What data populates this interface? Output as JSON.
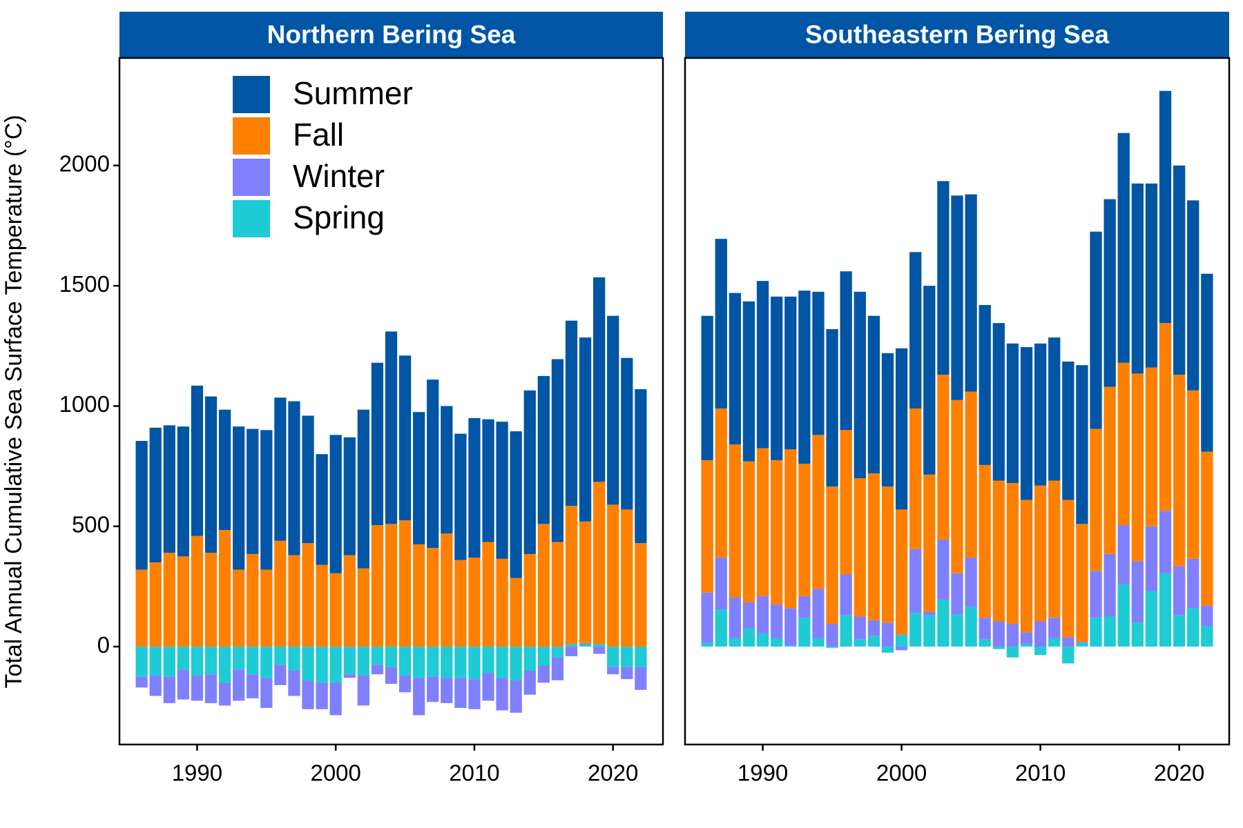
{
  "chart_data": [
    {
      "type": "bar",
      "stacked": true,
      "title": "Northern Bering Sea",
      "ylabel": "Total Annual Cumulative Sea Surface Temperature (°C)",
      "x": [
        1986,
        1987,
        1988,
        1989,
        1990,
        1991,
        1992,
        1993,
        1994,
        1995,
        1996,
        1997,
        1998,
        1999,
        2000,
        2001,
        2002,
        2003,
        2004,
        2005,
        2006,
        2007,
        2008,
        2009,
        2010,
        2011,
        2012,
        2013,
        2014,
        2015,
        2016,
        2017,
        2018,
        2019,
        2020,
        2021,
        2022
      ],
      "xlim": [
        1984.4,
        2023.6
      ],
      "xticks": [
        1990,
        2000,
        2010,
        2020
      ],
      "ylim": [
        -407,
        2447
      ],
      "yticks": [
        0,
        500,
        1000,
        1500,
        2000
      ],
      "legend": "upper left",
      "series": [
        {
          "name": "Summer",
          "color": "#0055a4",
          "values": [
            535,
            560,
            530,
            540,
            625,
            650,
            500,
            595,
            520,
            580,
            595,
            640,
            530,
            460,
            575,
            490,
            660,
            675,
            800,
            685,
            550,
            700,
            530,
            525,
            580,
            510,
            570,
            610,
            680,
            615,
            760,
            770,
            765,
            850,
            785,
            630,
            640
          ]
        },
        {
          "name": "Fall",
          "color": "#ff8000",
          "values": [
            320,
            350,
            390,
            375,
            460,
            390,
            485,
            320,
            385,
            320,
            440,
            380,
            430,
            340,
            305,
            380,
            325,
            505,
            510,
            525,
            425,
            410,
            470,
            360,
            370,
            435,
            365,
            285,
            385,
            510,
            435,
            575,
            505,
            675,
            590,
            570,
            430
          ]
        },
        {
          "name": "Winter",
          "color": "#8080ff",
          "values": [
            -45,
            -85,
            -110,
            -125,
            -105,
            -120,
            -95,
            -130,
            -100,
            -125,
            -85,
            -105,
            -120,
            -110,
            -135,
            -15,
            -125,
            -40,
            -70,
            -70,
            -155,
            -105,
            -105,
            -125,
            -125,
            -115,
            -135,
            -135,
            -100,
            -70,
            -95,
            -40,
            5,
            -30,
            -30,
            -50,
            -95
          ]
        },
        {
          "name": "Spring",
          "color": "#1fcbd4",
          "values": [
            -125,
            -120,
            -125,
            -95,
            -120,
            -115,
            -150,
            -95,
            -115,
            -130,
            -75,
            -100,
            -140,
            -150,
            -150,
            -115,
            -120,
            -75,
            -85,
            -120,
            -130,
            -125,
            -130,
            -130,
            -135,
            -110,
            -130,
            -140,
            -100,
            -80,
            -45,
            10,
            10,
            10,
            -85,
            -85,
            -85
          ]
        }
      ]
    },
    {
      "type": "bar",
      "stacked": true,
      "title": "Southeastern Bering Sea",
      "x": [
        1986,
        1987,
        1988,
        1989,
        1990,
        1991,
        1992,
        1993,
        1994,
        1995,
        1996,
        1997,
        1998,
        1999,
        2000,
        2001,
        2002,
        2003,
        2004,
        2005,
        2006,
        2007,
        2008,
        2009,
        2010,
        2011,
        2012,
        2013,
        2014,
        2015,
        2016,
        2017,
        2018,
        2019,
        2020,
        2021,
        2022
      ],
      "xlim": [
        1984.4,
        2023.6
      ],
      "xticks": [
        1990,
        2000,
        2010,
        2020
      ],
      "ylim": [
        -407,
        2447
      ],
      "series": [
        {
          "color": "#0055a4",
          "values": [
            600,
            705,
            630,
            665,
            695,
            680,
            635,
            720,
            595,
            655,
            660,
            775,
            655,
            555,
            670,
            650,
            785,
            805,
            850,
            820,
            665,
            655,
            580,
            635,
            590,
            595,
            575,
            660,
            820,
            780,
            955,
            790,
            765,
            965,
            870,
            790,
            740
          ]
        },
        {
          "color": "#ff8000",
          "values": [
            550,
            620,
            635,
            585,
            615,
            600,
            660,
            550,
            640,
            570,
            600,
            575,
            610,
            565,
            520,
            585,
            570,
            685,
            720,
            690,
            635,
            585,
            585,
            550,
            565,
            570,
            570,
            490,
            590,
            695,
            675,
            780,
            660,
            780,
            795,
            700,
            640
          ]
        },
        {
          "color": "#8080ff",
          "values": [
            210,
            215,
            170,
            110,
            155,
            140,
            155,
            90,
            205,
            95,
            170,
            95,
            65,
            100,
            -15,
            265,
            15,
            250,
            170,
            205,
            90,
            105,
            95,
            50,
            105,
            85,
            40,
            5,
            195,
            260,
            245,
            255,
            270,
            260,
            205,
            205,
            85
          ]
        },
        {
          "color": "#1fcbd4",
          "values": [
            15,
            155,
            35,
            75,
            55,
            35,
            5,
            120,
            35,
            -5,
            130,
            30,
            45,
            -25,
            50,
            140,
            130,
            195,
            135,
            165,
            30,
            -10,
            -45,
            10,
            -35,
            35,
            -70,
            15,
            120,
            125,
            260,
            100,
            230,
            305,
            130,
            160,
            85
          ]
        }
      ]
    }
  ]
}
